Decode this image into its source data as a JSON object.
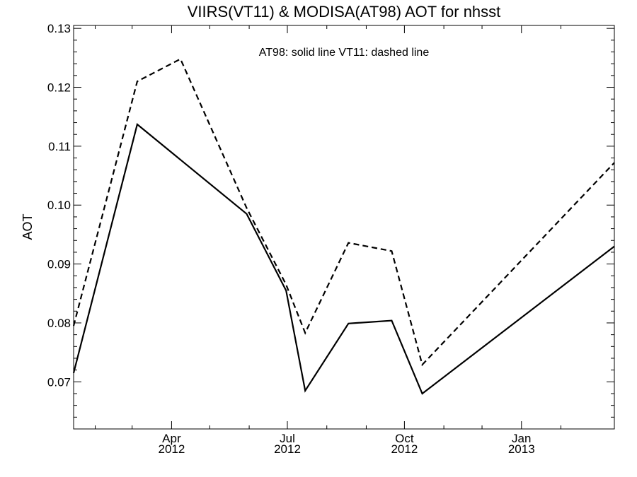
{
  "chart_data": {
    "type": "line",
    "title": "VIIRS(VT11) & MODISA(AT98)  AOT for nhsst",
    "annotation": "AT98: solid line   VT11: dashed line",
    "xlabel": "",
    "ylabel": "AOT",
    "x_tick_labels": [
      {
        "month": "Apr",
        "year": "2012",
        "date": "2012-04-01"
      },
      {
        "month": "Jul",
        "year": "2012",
        "date": "2012-07-01"
      },
      {
        "month": "Oct",
        "year": "2012",
        "date": "2012-10-01"
      },
      {
        "month": "Jan",
        "year": "2013",
        "date": "2013-01-01"
      }
    ],
    "xlim": [
      "2012-01-15",
      "2013-03-15"
    ],
    "ylim": [
      0.062,
      0.1305
    ],
    "y_ticks": [
      "0.07",
      "0.08",
      "0.09",
      "0.10",
      "0.11",
      "0.12",
      "0.13"
    ],
    "grid": false,
    "series": [
      {
        "name": "AT98",
        "style": "solid",
        "color": "#000000",
        "points": [
          {
            "x": "2012-01-15",
            "y": 0.0715
          },
          {
            "x": "2012-03-05",
            "y": 0.1137
          },
          {
            "x": "2012-05-30",
            "y": 0.0985
          },
          {
            "x": "2012-06-30",
            "y": 0.0855
          },
          {
            "x": "2012-07-15",
            "y": 0.0685
          },
          {
            "x": "2012-08-18",
            "y": 0.0799
          },
          {
            "x": "2012-09-21",
            "y": 0.0804
          },
          {
            "x": "2012-10-15",
            "y": 0.068
          },
          {
            "x": "2013-03-15",
            "y": 0.093
          }
        ]
      },
      {
        "name": "VT11",
        "style": "dashed",
        "color": "#000000",
        "points": [
          {
            "x": "2012-01-15",
            "y": 0.0795
          },
          {
            "x": "2012-03-05",
            "y": 0.121
          },
          {
            "x": "2012-04-08",
            "y": 0.1248
          },
          {
            "x": "2012-05-30",
            "y": 0.0995
          },
          {
            "x": "2012-06-30",
            "y": 0.0865
          },
          {
            "x": "2012-07-15",
            "y": 0.0783
          },
          {
            "x": "2012-08-18",
            "y": 0.0936
          },
          {
            "x": "2012-09-21",
            "y": 0.0922
          },
          {
            "x": "2012-10-15",
            "y": 0.0729
          },
          {
            "x": "2013-03-15",
            "y": 0.1072
          }
        ]
      }
    ]
  }
}
